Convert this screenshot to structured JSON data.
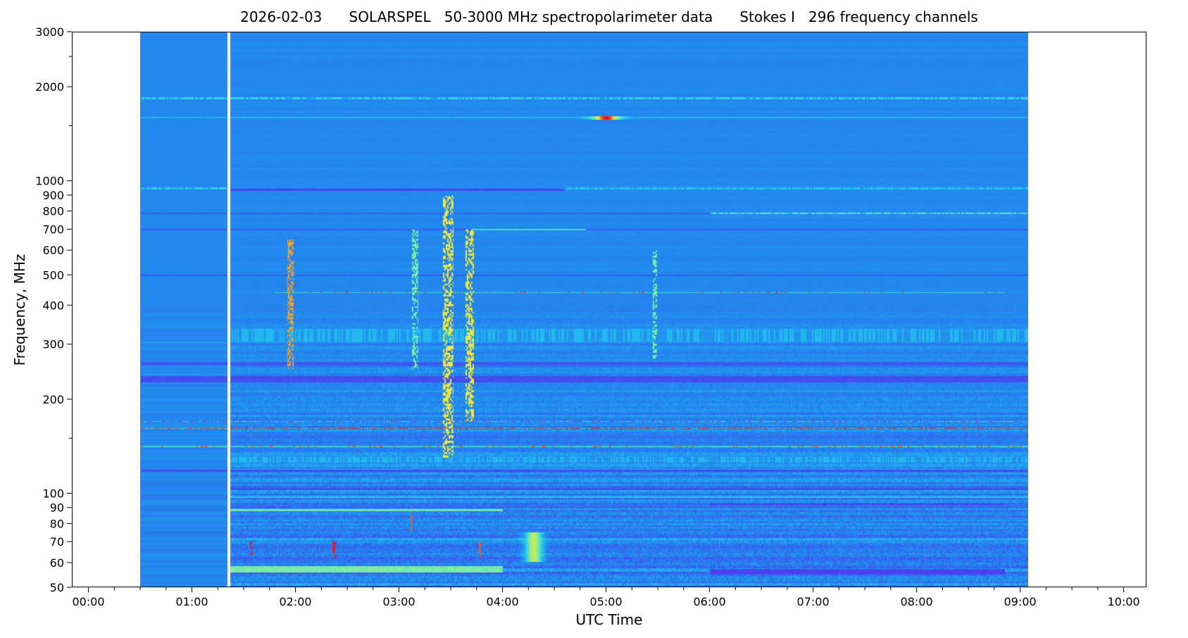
{
  "chart_data": {
    "type": "heatmap",
    "title": "2026-02-03      SOLARSPEL   50-3000 MHz spectropolarimeter data      Stokes I   296 frequency channels",
    "xlabel": "UTC Time",
    "ylabel": "Frequency, MHz",
    "x_unit": "hours UTC",
    "xlim_hours": [
      -0.16,
      10.22
    ],
    "ylim_mhz": [
      50,
      3000
    ],
    "y_scale": "log",
    "x_ticks": [
      {
        "h": 0,
        "label": "00:00"
      },
      {
        "h": 1,
        "label": "01:00"
      },
      {
        "h": 2,
        "label": "02:00"
      },
      {
        "h": 3,
        "label": "03:00"
      },
      {
        "h": 4,
        "label": "04:00"
      },
      {
        "h": 5,
        "label": "05:00"
      },
      {
        "h": 6,
        "label": "06:00"
      },
      {
        "h": 7,
        "label": "07:00"
      },
      {
        "h": 8,
        "label": "08:00"
      },
      {
        "h": 9,
        "label": "09:00"
      },
      {
        "h": 10,
        "label": "10:00"
      }
    ],
    "x_minor_step_hours": 0.25,
    "y_ticks": [
      {
        "f": 50,
        "label": "50"
      },
      {
        "f": 60,
        "label": "60"
      },
      {
        "f": 70,
        "label": "70"
      },
      {
        "f": 80,
        "label": "80"
      },
      {
        "f": 90,
        "label": "90"
      },
      {
        "f": 100,
        "label": "100"
      },
      {
        "f": 200,
        "label": "200"
      },
      {
        "f": 300,
        "label": "300"
      },
      {
        "f": 400,
        "label": "400"
      },
      {
        "f": 500,
        "label": "500"
      },
      {
        "f": 600,
        "label": "600"
      },
      {
        "f": 700,
        "label": "700"
      },
      {
        "f": 800,
        "label": "800"
      },
      {
        "f": 900,
        "label": "900"
      },
      {
        "f": 1000,
        "label": "1000"
      },
      {
        "f": 2000,
        "label": "2000"
      },
      {
        "f": 3000,
        "label": "3000"
      }
    ],
    "y_minor_ticks": [
      150,
      1500,
      2500
    ],
    "data_time_range_hours": [
      0.5,
      9.08
    ],
    "data_gap_hours": [
      1.34,
      1.37
    ],
    "frequency_channels": 296,
    "background_level": 0.3,
    "bands": [
      {
        "f_mhz": 1850,
        "width": 0.006,
        "level": 0.55,
        "t": [
          0.5,
          9.08
        ],
        "dotted": true
      },
      {
        "f_mhz": 1600,
        "width": 0.005,
        "level": 0.45,
        "t": [
          0.5,
          9.08
        ],
        "dotted": false
      },
      {
        "f_mhz": 950,
        "width": 0.006,
        "level": 0.55,
        "t": [
          0.5,
          1.34
        ],
        "dotted": true
      },
      {
        "f_mhz": 940,
        "width": 0.006,
        "level": 0.08,
        "t": [
          1.37,
          4.6
        ],
        "dotted": false
      },
      {
        "f_mhz": 950,
        "width": 0.006,
        "level": 0.5,
        "t": [
          4.6,
          9.08
        ],
        "dotted": true
      },
      {
        "f_mhz": 790,
        "width": 0.005,
        "level": 0.15,
        "t": [
          0.5,
          6.0
        ],
        "dotted": false
      },
      {
        "f_mhz": 790,
        "width": 0.005,
        "level": 0.65,
        "t": [
          6.0,
          9.08
        ],
        "dotted": true
      },
      {
        "f_mhz": 700,
        "width": 0.005,
        "level": 0.15,
        "t": [
          0.5,
          9.08
        ],
        "dotted": false
      },
      {
        "f_mhz": 700,
        "width": 0.005,
        "level": 0.6,
        "t": [
          3.7,
          4.8
        ],
        "dotted": false
      },
      {
        "f_mhz": 500,
        "width": 0.006,
        "level": 0.12,
        "t": [
          0.5,
          9.08
        ],
        "dotted": false
      },
      {
        "f_mhz": 440,
        "width": 0.004,
        "level": 0.97,
        "t": [
          1.8,
          8.85
        ],
        "dotted": true,
        "density": 0.12
      },
      {
        "f_mhz": 320,
        "width": 0.05,
        "level": 0.45,
        "t": [
          1.37,
          9.08
        ],
        "dotted": true,
        "density": 0.5
      },
      {
        "f_mhz": 260,
        "width": 0.012,
        "level": 0.15,
        "t": [
          0.5,
          9.08
        ],
        "dotted": false
      },
      {
        "f_mhz": 232,
        "width": 0.025,
        "level": 0.12,
        "t": [
          0.5,
          9.08
        ],
        "dotted": false
      },
      {
        "f_mhz": 170,
        "width": 0.004,
        "level": 0.97,
        "t": [
          0.5,
          9.08
        ],
        "dotted": true,
        "density": 0.45
      },
      {
        "f_mhz": 161,
        "width": 0.004,
        "level": 0.97,
        "t": [
          0.5,
          9.08
        ],
        "dotted": true,
        "density": 0.6
      },
      {
        "f_mhz": 141,
        "width": 0.004,
        "level": 0.95,
        "t": [
          0.5,
          9.08
        ],
        "dotted": true,
        "density": 0.15
      },
      {
        "f_mhz": 128,
        "width": 0.02,
        "level": 0.45,
        "t": [
          1.37,
          9.08
        ],
        "dotted": true,
        "density": 0.5
      },
      {
        "f_mhz": 118,
        "width": 0.006,
        "level": 0.12,
        "t": [
          0.5,
          9.08
        ],
        "dotted": false
      },
      {
        "f_mhz": 103,
        "width": 0.006,
        "level": 0.12,
        "t": [
          1.37,
          9.08
        ],
        "dotted": false
      },
      {
        "f_mhz": 97,
        "width": 0.005,
        "level": 0.5,
        "t": [
          1.37,
          9.08
        ],
        "dotted": false
      },
      {
        "f_mhz": 92,
        "width": 0.006,
        "level": 0.08,
        "t": [
          6.0,
          8.85
        ],
        "dotted": false
      },
      {
        "f_mhz": 88,
        "width": 0.008,
        "level": 0.68,
        "t": [
          1.37,
          4.0
        ],
        "dotted": false
      },
      {
        "f_mhz": 57,
        "width": 0.025,
        "level": 0.7,
        "t": [
          1.37,
          4.0
        ],
        "dotted": false
      },
      {
        "f_mhz": 56,
        "width": 0.02,
        "level": 0.08,
        "t": [
          6.0,
          8.85
        ],
        "dotted": false
      }
    ],
    "bursts": [
      {
        "t": 5.0,
        "t_width": 0.25,
        "f": [
          1580,
          1620
        ],
        "level": 1.0
      },
      {
        "t": 1.95,
        "t_width": 0.03,
        "f": [
          250,
          650
        ],
        "level": 0.9
      },
      {
        "t": 3.47,
        "t_width": 0.05,
        "f": [
          130,
          900
        ],
        "level": 0.85
      },
      {
        "t": 3.68,
        "t_width": 0.04,
        "f": [
          170,
          700
        ],
        "level": 0.85
      },
      {
        "t": 3.15,
        "t_width": 0.03,
        "f": [
          250,
          700
        ],
        "level": 0.7
      },
      {
        "t": 5.47,
        "t_width": 0.02,
        "f": [
          270,
          600
        ],
        "level": 0.7
      },
      {
        "t": 1.57,
        "t_width": 0.012,
        "f": [
          62,
          70
        ],
        "level": 1.0
      },
      {
        "t": 2.37,
        "t_width": 0.015,
        "f": [
          62,
          70
        ],
        "level": 1.0
      },
      {
        "t": 3.12,
        "t_width": 0.01,
        "f": [
          75,
          92
        ],
        "level": 0.95
      },
      {
        "t": 4.3,
        "t_width": 0.15,
        "f": [
          60,
          75
        ],
        "level": 0.8
      },
      {
        "t": 3.78,
        "t_width": 0.012,
        "f": [
          62,
          70
        ],
        "level": 0.95
      }
    ]
  }
}
